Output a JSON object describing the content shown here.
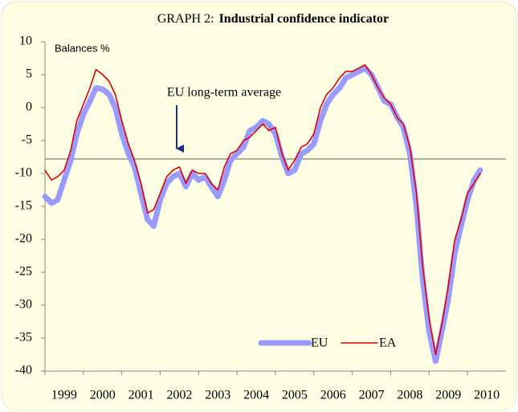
{
  "chart_data": {
    "type": "line",
    "title_label": "GRAPH 2:",
    "title": "Industrial confidence indicator",
    "y_label": "Balances %",
    "annotation": "EU long-term average",
    "hline": -7.8,
    "legend": "lower center",
    "xlim": [
      1999,
      2011
    ],
    "xticks": [
      1999,
      2000,
      2001,
      2002,
      2003,
      2004,
      2005,
      2006,
      2007,
      2008,
      2009,
      2010
    ],
    "ylim": [
      -40,
      10
    ],
    "yticks": [
      10,
      5,
      0,
      -5,
      -10,
      -15,
      -20,
      -25,
      -30,
      -35,
      -40
    ],
    "x": [
      1999,
      1999.17,
      1999.33,
      1999.5,
      1999.67,
      1999.83,
      2000,
      2000.17,
      2000.33,
      2000.5,
      2000.67,
      2000.83,
      2001,
      2001.17,
      2001.33,
      2001.5,
      2001.67,
      2001.83,
      2002,
      2002.17,
      2002.33,
      2002.5,
      2002.67,
      2002.83,
      2003,
      2003.17,
      2003.33,
      2003.5,
      2003.67,
      2003.83,
      2004,
      2004.17,
      2004.33,
      2004.5,
      2004.67,
      2004.83,
      2005,
      2005.17,
      2005.33,
      2005.5,
      2005.67,
      2005.83,
      2006,
      2006.17,
      2006.33,
      2006.5,
      2006.67,
      2006.83,
      2007,
      2007.17,
      2007.33,
      2007.5,
      2007.67,
      2007.83,
      2008,
      2008.17,
      2008.33,
      2008.5,
      2008.67,
      2008.83,
      2009,
      2009.17,
      2009.33,
      2009.5,
      2009.67,
      2009.83,
      2010,
      2010.17,
      2010.33
    ],
    "series": [
      {
        "name": "EU",
        "color": "#9b9bff",
        "width": 7,
        "values": [
          -13.5,
          -14.5,
          -14,
          -11,
          -8,
          -4,
          -1,
          1,
          3,
          2.8,
          2,
          0,
          -4,
          -7,
          -9,
          -13,
          -17,
          -18,
          -14,
          -11.5,
          -10.5,
          -10,
          -12,
          -10,
          -11,
          -10.5,
          -12,
          -13.5,
          -11,
          -8,
          -7,
          -6,
          -3.5,
          -3,
          -2,
          -2.5,
          -4,
          -7.5,
          -10,
          -9.5,
          -7,
          -6.5,
          -5.5,
          -2,
          0.5,
          2,
          3,
          4.5,
          5,
          5.5,
          6,
          5,
          3,
          1,
          0.5,
          -1.5,
          -3,
          -7,
          -15,
          -26,
          -34,
          -38.5,
          -34,
          -29,
          -22,
          -18,
          -14,
          -11,
          -9.5
        ]
      },
      {
        "name": "EA",
        "color": "#e00000",
        "width": 1.6,
        "values": [
          -9.5,
          -11,
          -10.5,
          -9.5,
          -6.5,
          -2,
          0.5,
          3,
          5.8,
          5,
          4,
          2,
          -2,
          -5.5,
          -8,
          -11.5,
          -16,
          -15.5,
          -13,
          -10.5,
          -9.5,
          -9,
          -11.5,
          -9.5,
          -10,
          -10,
          -11.5,
          -12.5,
          -9,
          -7,
          -6.5,
          -5,
          -4.5,
          -3.5,
          -2.5,
          -3.5,
          -3,
          -7,
          -9.5,
          -8,
          -6,
          -5.5,
          -4,
          0,
          2,
          3,
          4.5,
          5.5,
          5.5,
          6,
          6.5,
          5,
          3,
          1.5,
          0.5,
          -1.5,
          -2.5,
          -6,
          -13,
          -24,
          -32,
          -37.5,
          -33,
          -27,
          -20,
          -17,
          -13,
          -11.5,
          -10
        ]
      }
    ]
  }
}
